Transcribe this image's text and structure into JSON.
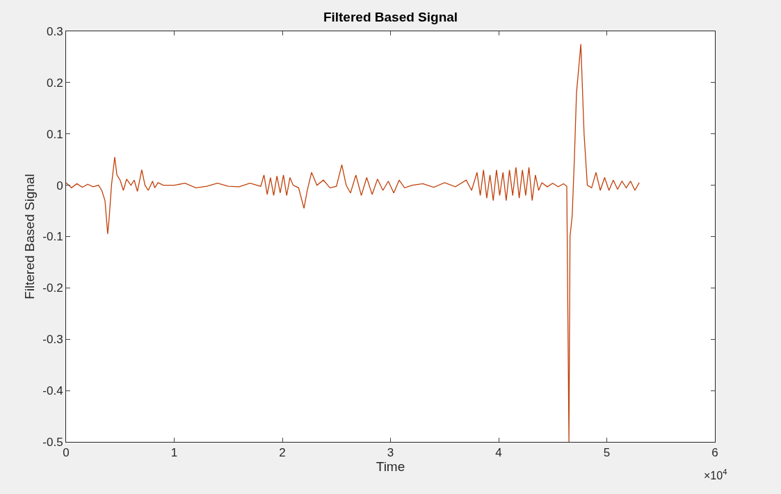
{
  "chart_data": {
    "type": "line",
    "title": "Filtered Based Signal",
    "xlabel": "Time",
    "ylabel": "Filtered Based Signal",
    "annotations": [
      "×10$^{4}$"
    ],
    "xlim": [
      0,
      6
    ],
    "xticks": [
      0,
      1,
      2,
      3,
      4,
      5,
      6
    ],
    "ylim": [
      -0.5,
      0.3
    ],
    "yticks": [
      -0.5,
      -0.4,
      -0.3,
      -0.2,
      -0.1,
      0,
      0.1,
      0.2,
      0.3
    ],
    "marker": "none",
    "line_style": "solid",
    "series": [
      {
        "color": "#c0400a",
        "x": [
          0,
          0.05,
          0.1,
          0.15,
          0.2,
          0.25,
          0.3,
          0.33,
          0.36,
          0.385,
          0.4,
          0.42,
          0.45,
          0.47,
          0.5,
          0.53,
          0.56,
          0.6,
          0.63,
          0.66,
          0.7,
          0.73,
          0.76,
          0.8,
          0.82,
          0.85,
          0.9,
          1.0,
          1.1,
          1.2,
          1.3,
          1.4,
          1.5,
          1.6,
          1.7,
          1.8,
          1.83,
          1.86,
          1.89,
          1.92,
          1.95,
          1.98,
          2.01,
          2.04,
          2.07,
          2.1,
          2.15,
          2.2,
          2.23,
          2.27,
          2.32,
          2.38,
          2.44,
          2.5,
          2.55,
          2.59,
          2.63,
          2.68,
          2.73,
          2.78,
          2.83,
          2.88,
          2.93,
          2.98,
          3.03,
          3.08,
          3.13,
          3.2,
          3.3,
          3.4,
          3.5,
          3.6,
          3.7,
          3.75,
          3.8,
          3.83,
          3.86,
          3.89,
          3.92,
          3.95,
          3.98,
          4.01,
          4.04,
          4.07,
          4.1,
          4.13,
          4.16,
          4.19,
          4.22,
          4.25,
          4.28,
          4.31,
          4.34,
          4.37,
          4.4,
          4.45,
          4.5,
          4.55,
          4.6,
          4.63,
          4.65,
          4.66,
          4.68,
          4.7,
          4.72,
          4.76,
          4.79,
          4.82,
          4.86,
          4.9,
          4.94,
          4.98,
          5.02,
          5.06,
          5.1,
          5.14,
          5.18,
          5.22,
          5.26,
          5.3
        ],
        "values": [
          0.005,
          -0.005,
          0.003,
          -0.004,
          0.002,
          -0.003,
          0.0,
          -0.01,
          -0.03,
          -0.095,
          -0.06,
          0.0,
          0.055,
          0.02,
          0.01,
          -0.01,
          0.012,
          0.0,
          0.01,
          -0.012,
          0.03,
          0.0,
          -0.01,
          0.008,
          -0.005,
          0.005,
          0.0,
          0.0,
          0.004,
          -0.005,
          -0.002,
          0.004,
          -0.002,
          -0.003,
          0.004,
          -0.002,
          0.02,
          -0.018,
          0.015,
          -0.02,
          0.018,
          -0.015,
          0.02,
          -0.02,
          0.015,
          0.0,
          -0.005,
          -0.045,
          -0.01,
          0.025,
          0.0,
          0.01,
          -0.005,
          -0.002,
          0.04,
          0.0,
          -0.015,
          0.02,
          -0.02,
          0.015,
          -0.018,
          0.012,
          -0.01,
          0.008,
          -0.015,
          0.01,
          -0.005,
          0.0,
          0.003,
          -0.004,
          0.005,
          -0.003,
          0.01,
          -0.01,
          0.025,
          -0.02,
          0.03,
          -0.025,
          0.02,
          -0.03,
          0.03,
          -0.02,
          0.025,
          -0.03,
          0.03,
          -0.02,
          0.035,
          -0.025,
          0.03,
          -0.02,
          0.035,
          -0.03,
          0.02,
          -0.01,
          0.005,
          -0.003,
          0.004,
          -0.003,
          0.003,
          -0.002,
          -0.5,
          -0.1,
          -0.06,
          0.05,
          0.18,
          0.275,
          0.1,
          0.0,
          -0.005,
          0.025,
          -0.01,
          0.015,
          -0.01,
          0.01,
          -0.008,
          0.008,
          -0.005,
          0.008,
          -0.01,
          0.005
        ]
      }
    ]
  }
}
